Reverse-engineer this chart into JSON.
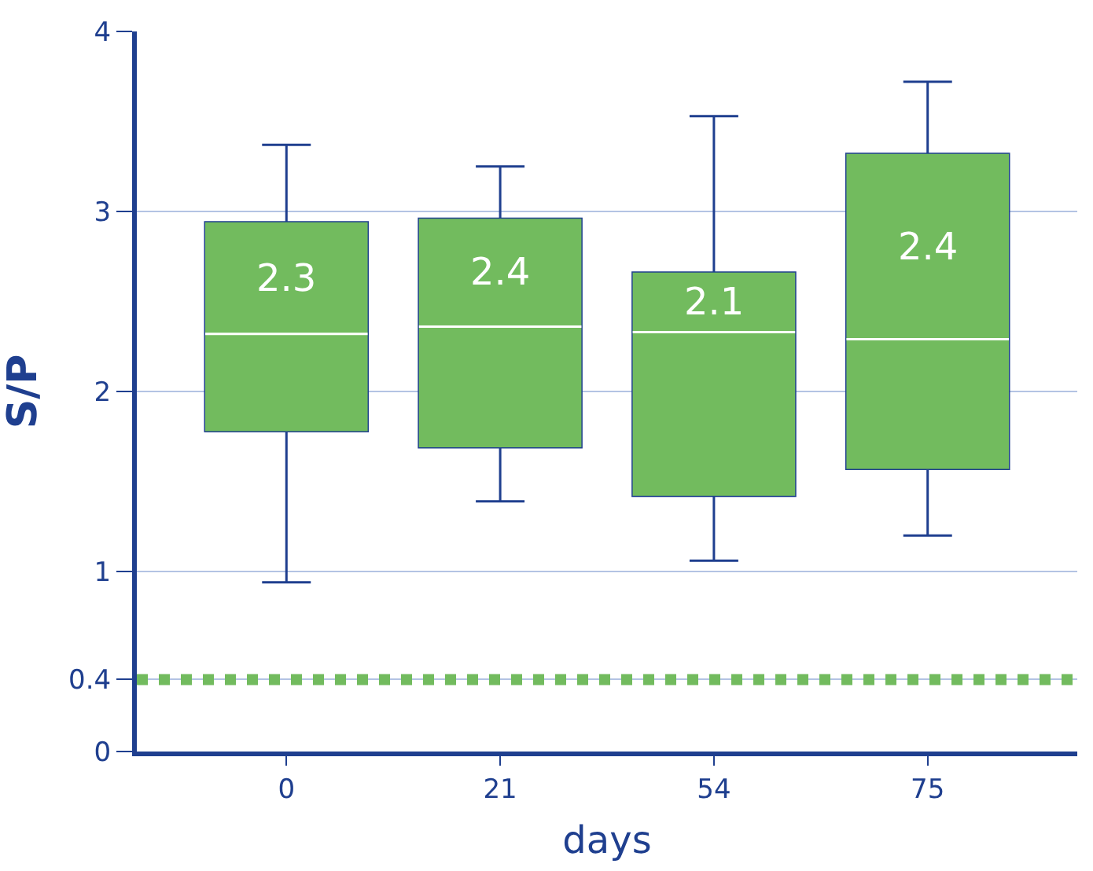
{
  "chart_data": {
    "type": "box",
    "xlabel": "days",
    "ylabel": "S/P",
    "categories": [
      "0",
      "21",
      "54",
      "75"
    ],
    "color": "#72bb5e",
    "boxes": [
      {
        "low": 0.94,
        "q1": 1.78,
        "median": 2.32,
        "q3": 2.94,
        "high": 3.37
      },
      {
        "low": 1.39,
        "q1": 1.69,
        "median": 2.36,
        "q3": 2.96,
        "high": 3.25
      },
      {
        "low": 1.06,
        "q1": 1.42,
        "median": 2.33,
        "q3": 2.66,
        "high": 3.53
      },
      {
        "low": 1.2,
        "q1": 1.57,
        "median": 2.29,
        "q3": 3.32,
        "high": 3.72
      }
    ],
    "annotations": [
      "2.3",
      "2.4",
      "2.1",
      "2.4"
    ],
    "ylim": [
      0,
      4
    ],
    "yticks": [
      0,
      0.4,
      1,
      2,
      3,
      4
    ],
    "grid": "y",
    "ref_lines": [
      {
        "axis": "y",
        "value": 0.4,
        "color": "#72bb5e",
        "line_style": "dotted"
      }
    ]
  }
}
